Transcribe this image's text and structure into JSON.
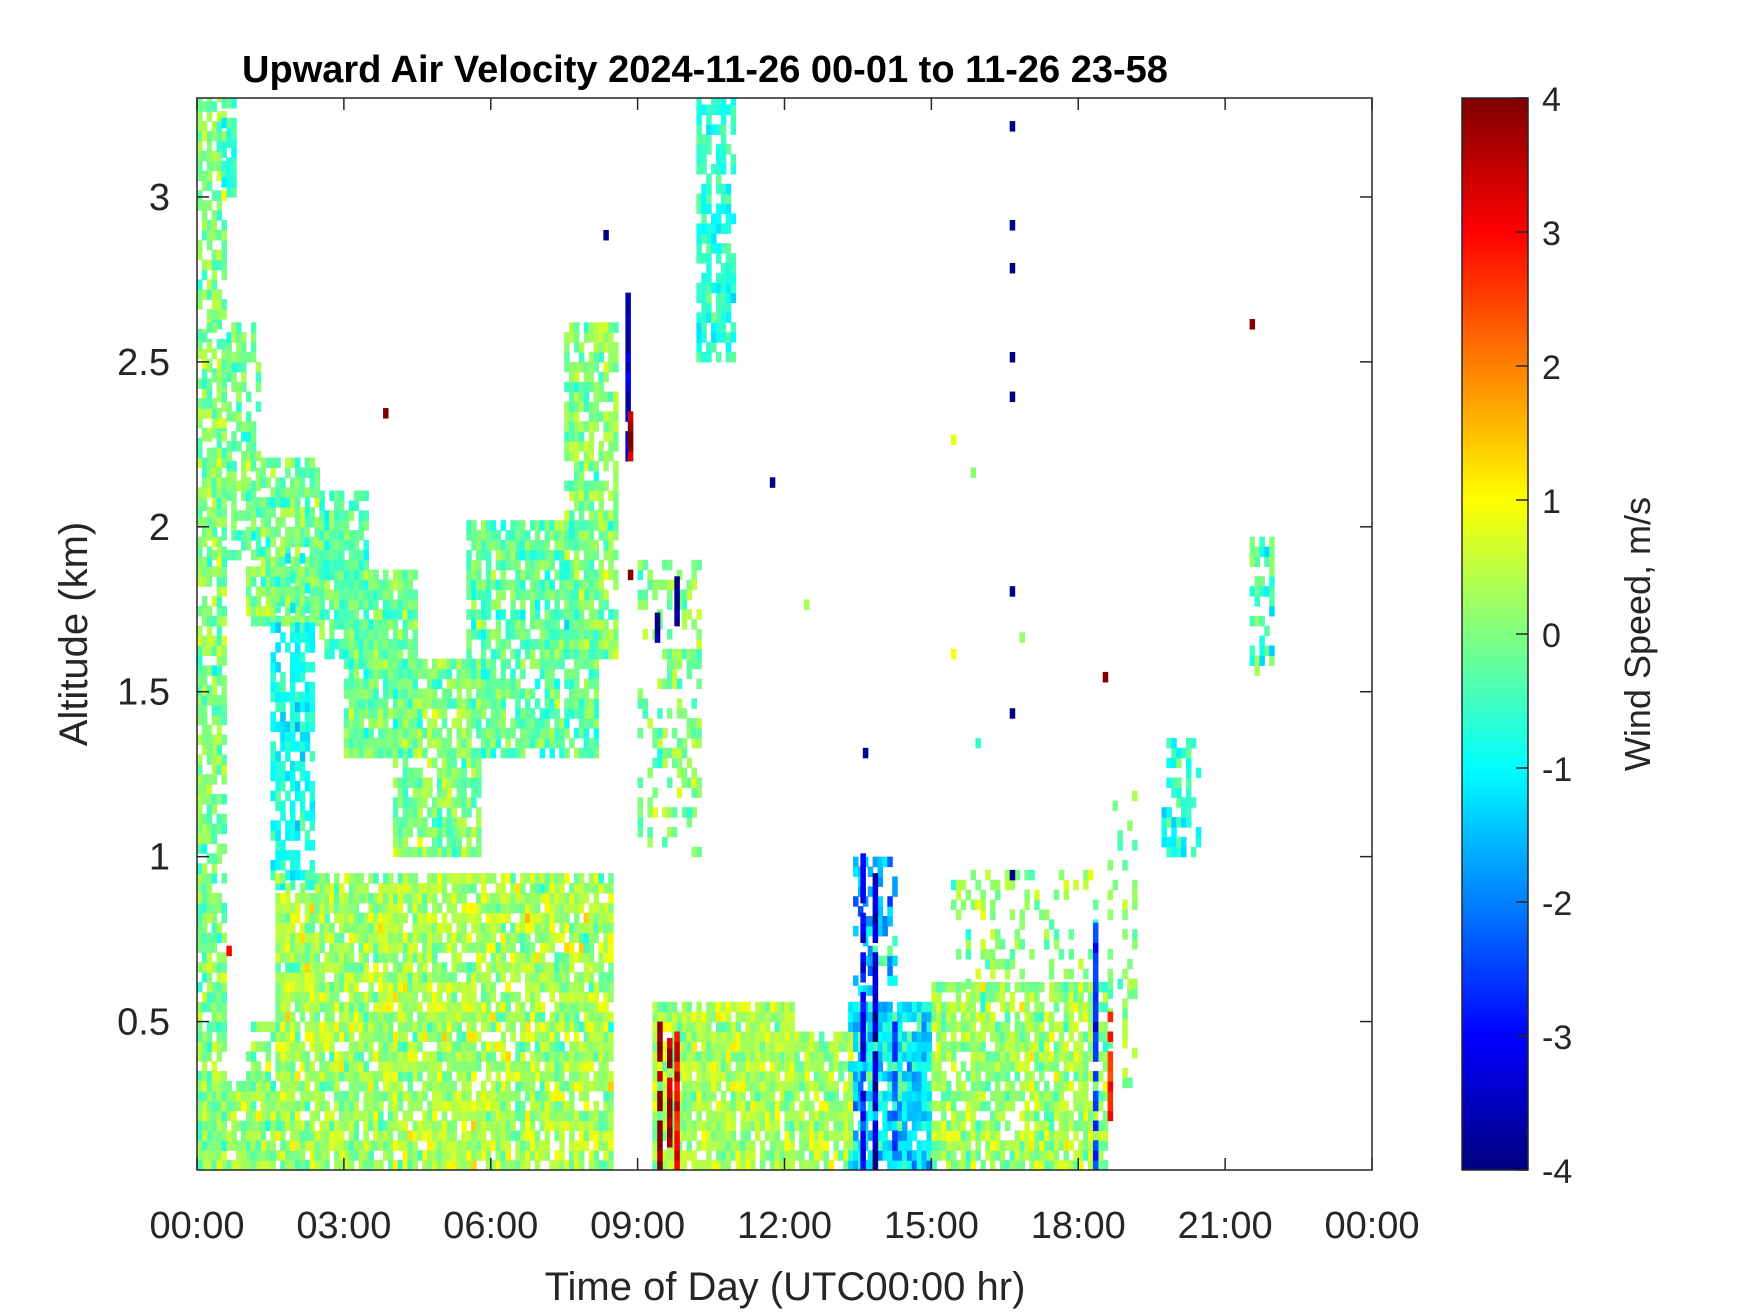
{
  "chart_data": {
    "type": "heatmap",
    "title": "Upward Air Velocity 2024-11-26 00-01 to 11-26 23-58",
    "xlabel": "Time of Day (UTC00:00 hr)",
    "ylabel": "Altitude (km)",
    "xlim_hours": [
      0,
      24
    ],
    "ylim_km": [
      0.05,
      3.3
    ],
    "x_tick_hours": [
      0,
      3,
      6,
      9,
      12,
      15,
      18,
      21,
      24
    ],
    "x_tick_labels": [
      "00:00",
      "03:00",
      "06:00",
      "09:00",
      "12:00",
      "15:00",
      "18:00",
      "21:00",
      "00:00"
    ],
    "y_ticks_km": [
      0.5,
      1,
      1.5,
      2,
      2.5,
      3
    ],
    "y_tick_labels": [
      "0.5",
      "1",
      "1.5",
      "2",
      "2.5",
      "3"
    ],
    "colorbar": {
      "label": "Wind Speed, m/s",
      "range": [
        -4,
        4
      ],
      "ticks": [
        4,
        3,
        2,
        1,
        0,
        -1,
        -2,
        -3,
        -4
      ],
      "tick_labels": [
        "4",
        "3",
        "2",
        "1",
        "0",
        "-1",
        "-2",
        "-3",
        "-4"
      ],
      "colormap": "jet"
    },
    "regions": [
      {
        "t": [
          0.0,
          0.6
        ],
        "alt": [
          0.05,
          3.3
        ],
        "density": 0.7,
        "v": 0.0,
        "spread": 0.6
      },
      {
        "t": [
          0.1,
          1.3
        ],
        "alt": [
          1.9,
          2.6
        ],
        "density": 0.6,
        "v": -0.1,
        "spread": 0.6
      },
      {
        "t": [
          0.5,
          0.8
        ],
        "alt": [
          3.0,
          3.3
        ],
        "density": 0.9,
        "v": -0.6,
        "spread": 0.5
      },
      {
        "t": [
          1.0,
          2.5
        ],
        "alt": [
          1.7,
          2.2
        ],
        "density": 0.8,
        "v": -0.1,
        "spread": 0.6
      },
      {
        "t": [
          1.5,
          2.4
        ],
        "alt": [
          0.9,
          1.9
        ],
        "density": 0.6,
        "v": -0.9,
        "spread": 0.5
      },
      {
        "t": [
          2.5,
          3.5
        ],
        "alt": [
          1.6,
          2.1
        ],
        "density": 0.85,
        "v": -0.3,
        "spread": 0.6
      },
      {
        "t": [
          3.0,
          4.5
        ],
        "alt": [
          1.3,
          1.85
        ],
        "density": 0.85,
        "v": -0.1,
        "spread": 0.6
      },
      {
        "t": [
          4.0,
          5.8
        ],
        "alt": [
          1.0,
          1.6
        ],
        "density": 0.8,
        "v": 0.0,
        "spread": 0.6
      },
      {
        "t": [
          5.5,
          8.2
        ],
        "alt": [
          1.3,
          2.0
        ],
        "density": 0.8,
        "v": -0.2,
        "spread": 0.6
      },
      {
        "t": [
          7.5,
          8.6
        ],
        "alt": [
          1.6,
          2.6
        ],
        "density": 0.7,
        "v": 0.1,
        "spread": 0.6
      },
      {
        "t": [
          1.6,
          8.5
        ],
        "alt": [
          0.05,
          0.95
        ],
        "density": 0.85,
        "v": 0.3,
        "spread": 0.7
      },
      {
        "t": [
          1.0,
          2.2
        ],
        "alt": [
          0.05,
          0.5
        ],
        "density": 0.6,
        "v": 0.1,
        "spread": 0.6
      },
      {
        "t": [
          0.0,
          1.6
        ],
        "alt": [
          0.05,
          0.3
        ],
        "density": 0.8,
        "v": 0.2,
        "spread": 0.6
      },
      {
        "t": [
          9.0,
          10.3
        ],
        "alt": [
          1.0,
          1.9
        ],
        "density": 0.35,
        "v": 0.0,
        "spread": 0.6
      },
      {
        "t": [
          10.2,
          11.0
        ],
        "alt": [
          2.5,
          3.3
        ],
        "density": 0.7,
        "v": -0.7,
        "spread": 0.5
      },
      {
        "t": [
          9.3,
          12.2
        ],
        "alt": [
          0.05,
          0.55
        ],
        "density": 0.9,
        "v": 0.3,
        "spread": 0.6
      },
      {
        "t": [
          12.0,
          13.4
        ],
        "alt": [
          0.05,
          0.45
        ],
        "density": 0.85,
        "v": 0.2,
        "spread": 0.6
      },
      {
        "t": [
          13.3,
          15.0
        ],
        "alt": [
          0.05,
          0.55
        ],
        "density": 0.9,
        "v": -1.2,
        "spread": 0.8
      },
      {
        "t": [
          13.4,
          14.3
        ],
        "alt": [
          0.4,
          1.0
        ],
        "density": 0.35,
        "v": -1.5,
        "spread": 0.9
      },
      {
        "t": [
          15.0,
          18.6
        ],
        "alt": [
          0.05,
          0.6
        ],
        "density": 0.8,
        "v": 0.2,
        "spread": 0.7
      },
      {
        "t": [
          15.4,
          18.4
        ],
        "alt": [
          0.6,
          0.95
        ],
        "density": 0.3,
        "v": 0.1,
        "spread": 0.6
      },
      {
        "t": [
          18.6,
          19.2
        ],
        "alt": [
          0.3,
          1.2
        ],
        "density": 0.25,
        "v": 0.1,
        "spread": 0.6
      },
      {
        "t": [
          19.7,
          20.5
        ],
        "alt": [
          1.0,
          1.35
        ],
        "density": 0.5,
        "v": -0.8,
        "spread": 0.6
      },
      {
        "t": [
          21.5,
          22.0
        ],
        "alt": [
          1.55,
          1.95
        ],
        "density": 0.65,
        "v": -0.4,
        "spread": 0.8
      }
    ],
    "isolated_points": [
      {
        "t": 3.8,
        "alt": 2.33,
        "v": 4
      },
      {
        "t": 8.8,
        "alt": 1.84,
        "v": 4
      },
      {
        "t": 21.5,
        "alt": 2.6,
        "v": 4
      },
      {
        "t": 18.5,
        "alt": 1.53,
        "v": 4
      },
      {
        "t": 0.6,
        "alt": 0.7,
        "v": 3
      },
      {
        "t": 16.6,
        "alt": 3.2,
        "v": -4
      },
      {
        "t": 16.6,
        "alt": 2.9,
        "v": -4
      },
      {
        "t": 16.6,
        "alt": 2.77,
        "v": -4
      },
      {
        "t": 16.6,
        "alt": 2.5,
        "v": -4
      },
      {
        "t": 16.6,
        "alt": 2.38,
        "v": -4
      },
      {
        "t": 16.6,
        "alt": 1.79,
        "v": -4
      },
      {
        "t": 16.6,
        "alt": 1.42,
        "v": -4
      },
      {
        "t": 16.6,
        "alt": 0.93,
        "v": -4
      },
      {
        "t": 11.7,
        "alt": 2.12,
        "v": -4
      },
      {
        "t": 8.3,
        "alt": 2.87,
        "v": -4
      },
      {
        "t": 15.4,
        "alt": 2.25,
        "v": 0.8
      },
      {
        "t": 15.8,
        "alt": 2.15,
        "v": 0.1
      },
      {
        "t": 12.4,
        "alt": 1.75,
        "v": 0.3
      },
      {
        "t": 15.4,
        "alt": 1.6,
        "v": 0.9
      },
      {
        "t": 16.8,
        "alt": 1.65,
        "v": 0.2
      },
      {
        "t": 15.9,
        "alt": 1.33,
        "v": -0.6
      },
      {
        "t": 13.6,
        "alt": 1.3,
        "v": -3.8
      }
    ],
    "vertical_streaks": [
      {
        "t": 8.75,
        "alt": [
          2.2,
          2.7
        ],
        "v": -3.5
      },
      {
        "t": 8.8,
        "alt": [
          2.2,
          2.35
        ],
        "v": 3.8
      },
      {
        "t": 9.4,
        "alt": [
          0.05,
          0.48
        ],
        "v": 3.9
      },
      {
        "t": 9.6,
        "alt": [
          0.12,
          0.45
        ],
        "v": 3.6
      },
      {
        "t": 9.75,
        "alt": [
          0.05,
          0.48
        ],
        "v": 3.2
      },
      {
        "t": 9.35,
        "alt": [
          1.65,
          1.8
        ],
        "v": -3.9
      },
      {
        "t": 9.75,
        "alt": [
          1.7,
          1.85
        ],
        "v": -3.9
      },
      {
        "t": 13.55,
        "alt": [
          0.05,
          1.0
        ],
        "v": -3.0
      },
      {
        "t": 13.8,
        "alt": [
          0.05,
          0.95
        ],
        "v": -3.5
      },
      {
        "t": 14.2,
        "alt": [
          0.05,
          0.5
        ],
        "v": -2.4
      },
      {
        "t": 18.3,
        "alt": [
          0.05,
          0.8
        ],
        "v": -2.6
      },
      {
        "t": 18.6,
        "alt": [
          0.2,
          0.55
        ],
        "v": 2.6
      }
    ]
  }
}
